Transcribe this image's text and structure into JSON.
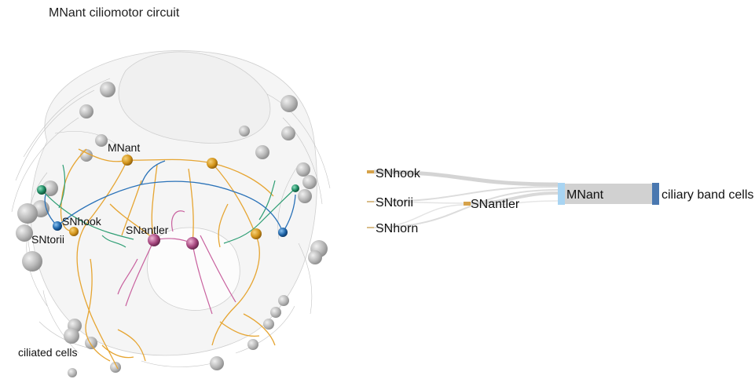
{
  "title": "MNant ciliomotor circuit",
  "render_labels": {
    "mnant": "MNant",
    "snhook": "SNhook",
    "sntorii": "SNtorii",
    "snantler": "SNantler",
    "ciliated_cells": "ciliated cells"
  },
  "sankey": {
    "source_nodes": [
      {
        "label": "SNhook",
        "color": "#d6a24a"
      },
      {
        "label": "SNtorii",
        "color": "#d9bd8a"
      },
      {
        "label": "SNhorn",
        "color": "#d9bd8a"
      }
    ],
    "inter_node": {
      "label": "SNantler",
      "color": "#d6a24a"
    },
    "motor_node": {
      "label": "MNant",
      "color": "#a8d4f2"
    },
    "target_node": {
      "label": "ciliary band cells",
      "color": "#4a78b0"
    },
    "link_color": "#c9c9c9"
  },
  "colors": {
    "orange_neuron": "#e6a532",
    "green_neuron": "#2e9e74",
    "blue_neuron": "#2a72b8",
    "pink_neuron": "#c8609e",
    "grey_cell": "#b5b5b5"
  }
}
